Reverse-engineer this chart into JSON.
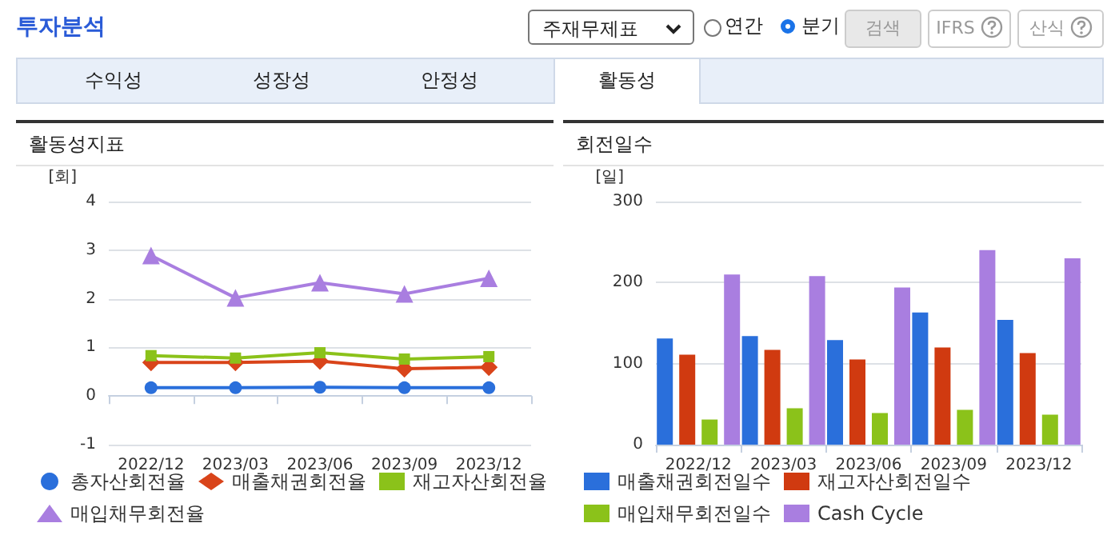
{
  "chart_data": [
    {
      "type": "other",
      "title": "투자분석",
      "annotations": [
        "주재무제표",
        "연간",
        "분기",
        "검색",
        "IFRS",
        "산식",
        "수익성",
        "성장성",
        "안정성",
        "활동성"
      ]
    },
    {
      "type": "line",
      "title": "활동성지표",
      "ylabel": "[회]",
      "categories": [
        "2022/12",
        "2023/03",
        "2023/06",
        "2023/09",
        "2023/12"
      ],
      "ylim": [
        -1,
        4
      ],
      "yticks": [
        -1,
        0,
        1,
        2,
        3,
        4
      ],
      "grid": "y",
      "legend": "bottom",
      "series": [
        {
          "name": "총자산회전율",
          "color": "#2a6fdb",
          "marker": "circle",
          "values": [
            0.17,
            0.17,
            0.18,
            0.17,
            0.17
          ]
        },
        {
          "name": "매출채권회전율",
          "color": "#d9441a",
          "marker": "diamond",
          "values": [
            0.69,
            0.69,
            0.72,
            0.56,
            0.59
          ]
        },
        {
          "name": "재고자산회전율",
          "color": "#8bc21a",
          "marker": "square",
          "values": [
            0.83,
            0.78,
            0.89,
            0.76,
            0.81
          ]
        },
        {
          "name": "매입채무회전율",
          "color": "#a97ee0",
          "marker": "triangle",
          "values": [
            2.89,
            2.02,
            2.33,
            2.1,
            2.42
          ]
        }
      ]
    },
    {
      "type": "bar",
      "title": "회전일수",
      "ylabel": "[일]",
      "categories": [
        "2022/12",
        "2023/03",
        "2023/06",
        "2023/09",
        "2023/12"
      ],
      "ylim": [
        0,
        300
      ],
      "yticks": [
        0,
        100,
        200,
        300
      ],
      "grid": "y",
      "legend": "bottom",
      "series": [
        {
          "name": "매출채권회전일수",
          "color": "#2a6fdb",
          "values": [
            131,
            134,
            129,
            163,
            154
          ]
        },
        {
          "name": "재고자산회전일수",
          "color": "#d03a10",
          "values": [
            111,
            117,
            105,
            120,
            113
          ]
        },
        {
          "name": "매입채무회전일수",
          "color": "#8bc21a",
          "values": [
            31,
            45,
            39,
            43,
            37
          ]
        },
        {
          "name": "Cash Cycle",
          "color": "#a97ee0",
          "values": [
            210,
            208,
            194,
            240,
            230
          ]
        }
      ]
    }
  ]
}
